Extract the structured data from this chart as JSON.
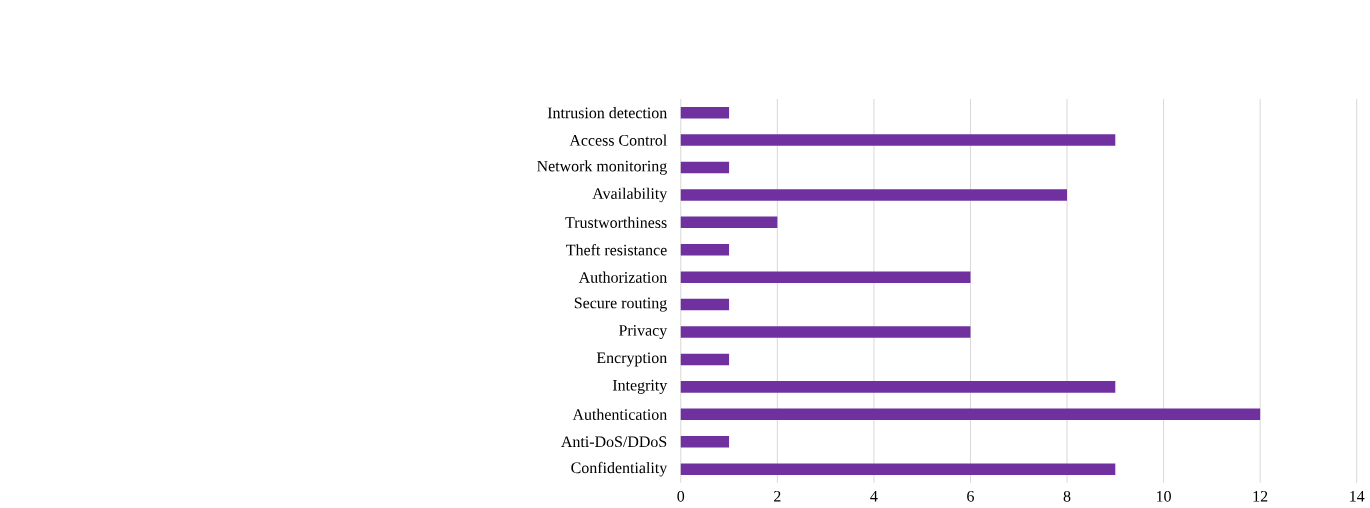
{
  "chart_data": {
    "type": "bar",
    "orientation": "horizontal",
    "categories": [
      "Intrusion detection",
      "Access Control",
      "Network monitoring",
      "Availability",
      "Trustworthiness",
      "Theft resistance",
      "Authorization",
      "Secure routing",
      "Privacy",
      "Encryption",
      "Integrity",
      "Authentication",
      "Anti-DoS/DDoS",
      "Confidentiality"
    ],
    "values": [
      1,
      9,
      1,
      8,
      2,
      1,
      6,
      1,
      6,
      1,
      9,
      12,
      1,
      9
    ],
    "color": "#7030a0",
    "xlim": [
      0,
      14
    ],
    "xticks": [
      0,
      2,
      4,
      6,
      8,
      10,
      12,
      14
    ],
    "grid": "x"
  }
}
